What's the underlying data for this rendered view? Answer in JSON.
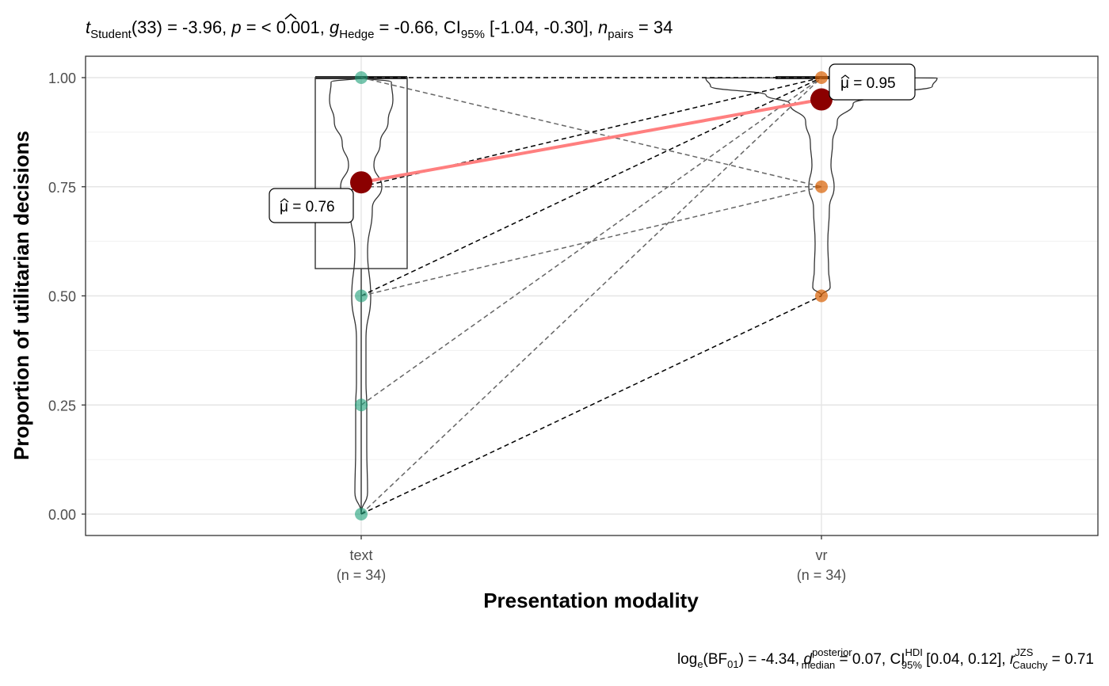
{
  "subtitle": {
    "t": "t",
    "t_sub": "Student",
    "t_rest": "(33) = -3.96, ",
    "p": "p",
    "p_rest": " = < 0.001, ",
    "g": "g",
    "g_sub": "Hedge",
    "g_rest": " = -0.66, CI",
    "ci_sub": "95%",
    "ci_rest": " [-1.04, -0.30], ",
    "n": "n",
    "n_sub": "pairs",
    "n_rest": " = 34"
  },
  "caption": {
    "part1": "log",
    "part1_sub": "e",
    "part2": "(BF",
    "part2_sub": "01",
    "part3": ") = -4.34, ",
    "d": "d",
    "d_sup": "posterior",
    "d_sub": "median",
    "part4": " = 0.07, CI",
    "ci_sup": "HDI",
    "ci_sub": "95%",
    "part5": " [0.04, 0.12], ",
    "r": "r",
    "r_sup": "JZS",
    "r_sub": "Cauchy",
    "part6": " = 0.71"
  },
  "mean_labels": {
    "text": "μ = 0.76",
    "vr": "μ = 0.95"
  },
  "chart_data": {
    "type": "violin-box-paired",
    "xlabel": "Presentation modality",
    "ylabel": "Proportion of utilitarian decisions",
    "ylim": [
      0,
      1
    ],
    "yticks": [
      "0.00",
      "0.25",
      "0.50",
      "0.75",
      "1.00"
    ],
    "ytick_values": [
      0,
      0.25,
      0.5,
      0.75,
      1
    ],
    "categories": [
      "text",
      "vr"
    ],
    "category_counts": [
      "(n = 34)",
      "(n = 34)"
    ],
    "grid": true,
    "colors": {
      "text_points": "#1b9e77",
      "vr_points": "#d95f02",
      "mean_point": "#8b0000",
      "mean_line": "#ff7f7f",
      "paired_lines_dark": "#000000",
      "paired_lines_gray": "#666666"
    },
    "means": {
      "text": 0.76,
      "vr": 0.95
    },
    "boxplot_text": {
      "q1": 0.5625,
      "median": 1.0,
      "q3": 1.0,
      "whisker_low": 0.0,
      "whisker_high": 1.0
    },
    "boxplot_vr": {
      "q1": 1.0,
      "median": 1.0,
      "q3": 1.0
    },
    "points": {
      "text": [
        0,
        0.25,
        0.5,
        0.75,
        1.0
      ],
      "vr": [
        0.5,
        0.75,
        1.0
      ]
    },
    "pairs": [
      {
        "text": 1.0,
        "vr": 1.0,
        "style": "dark"
      },
      {
        "text": 1.0,
        "vr": 0.75,
        "style": "gray"
      },
      {
        "text": 0.75,
        "vr": 1.0,
        "style": "dark"
      },
      {
        "text": 0.75,
        "vr": 0.75,
        "style": "gray"
      },
      {
        "text": 0.5,
        "vr": 1.0,
        "style": "dark"
      },
      {
        "text": 0.5,
        "vr": 0.75,
        "style": "gray"
      },
      {
        "text": 0.25,
        "vr": 1.0,
        "style": "gray"
      },
      {
        "text": 0.0,
        "vr": 1.0,
        "style": "gray"
      },
      {
        "text": 0.0,
        "vr": 0.5,
        "style": "dark"
      }
    ]
  }
}
